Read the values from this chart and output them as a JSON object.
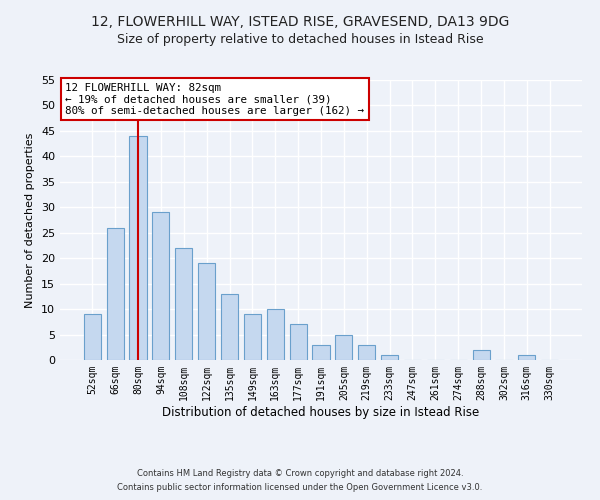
{
  "title1": "12, FLOWERHILL WAY, ISTEAD RISE, GRAVESEND, DA13 9DG",
  "title2": "Size of property relative to detached houses in Istead Rise",
  "xlabel": "Distribution of detached houses by size in Istead Rise",
  "ylabel": "Number of detached properties",
  "categories": [
    "52sqm",
    "66sqm",
    "80sqm",
    "94sqm",
    "108sqm",
    "122sqm",
    "135sqm",
    "149sqm",
    "163sqm",
    "177sqm",
    "191sqm",
    "205sqm",
    "219sqm",
    "233sqm",
    "247sqm",
    "261sqm",
    "274sqm",
    "288sqm",
    "302sqm",
    "316sqm",
    "330sqm"
  ],
  "values": [
    9,
    26,
    44,
    29,
    22,
    19,
    13,
    9,
    10,
    7,
    3,
    5,
    3,
    1,
    0,
    0,
    0,
    2,
    0,
    1,
    0
  ],
  "bar_color": "#c5d8ef",
  "bar_edge_color": "#6aa0cc",
  "vline_color": "#cc0000",
  "annotation_text": "12 FLOWERHILL WAY: 82sqm\n← 19% of detached houses are smaller (39)\n80% of semi-detached houses are larger (162) →",
  "annotation_box_color": "#ffffff",
  "annotation_box_edge": "#cc0000",
  "ylim": [
    0,
    55
  ],
  "yticks": [
    0,
    5,
    10,
    15,
    20,
    25,
    30,
    35,
    40,
    45,
    50,
    55
  ],
  "footer1": "Contains HM Land Registry data © Crown copyright and database right 2024.",
  "footer2": "Contains public sector information licensed under the Open Government Licence v3.0.",
  "bg_color": "#eef2f9",
  "grid_color": "#ffffff",
  "title_fontsize": 10,
  "subtitle_fontsize": 9,
  "bar_width": 0.75
}
